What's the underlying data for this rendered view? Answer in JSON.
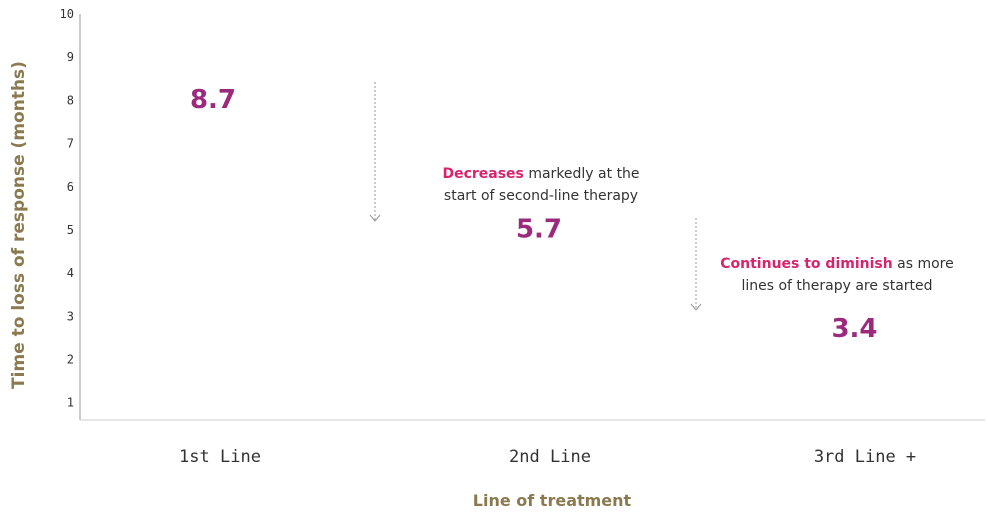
{
  "chart_data": {
    "type": "line",
    "ylabel": "Time to loss of response (months)",
    "xlabel": "Line of treatment",
    "ylim": [
      0.6,
      10
    ],
    "yticks": [
      1,
      2,
      3,
      4,
      5,
      6,
      7,
      8,
      9,
      10
    ],
    "categories": [
      "1st Line",
      "2nd Line",
      "3rd Line +"
    ],
    "values": [
      8.7,
      5.7,
      3.4
    ],
    "value_labels": [
      "8.7",
      "5.7",
      "3.4"
    ],
    "annotations": [
      {
        "strong": "Decreases",
        "line1_rest": " markedly at the",
        "line2": "start of second-line therapy"
      },
      {
        "strong": "Continues to diminish",
        "line1_rest": " as more",
        "line2": "lines of therapy are started"
      }
    ],
    "colors": {
      "line_start": "#7b3fb0",
      "line_end": "#e8246c",
      "value": "#9b2a7d",
      "highlight": "#d6246e",
      "axis_title": "#8b7a4f",
      "arrow": "#999999"
    }
  }
}
